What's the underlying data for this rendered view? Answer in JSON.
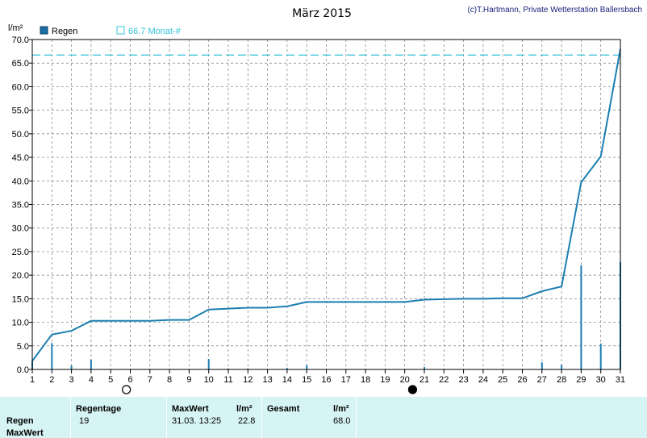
{
  "chart_data": {
    "type": "line",
    "title": "März 2015",
    "copyright": "(c)T.Hartmann, Private Wetterstation Ballersbach",
    "ylabel": "l/m²",
    "ylim": [
      0,
      70
    ],
    "yticks": [
      "0.0",
      "5.0",
      "10.0",
      "15.0",
      "20.0",
      "25.0",
      "30.0",
      "35.0",
      "40.0",
      "45.0",
      "50.0",
      "55.0",
      "60.0",
      "65.0",
      "70.0"
    ],
    "xlim": [
      1,
      31
    ],
    "xticks": [
      "1",
      "2",
      "3",
      "4",
      "5",
      "6",
      "7",
      "8",
      "9",
      "10",
      "11",
      "12",
      "13",
      "14",
      "15",
      "16",
      "17",
      "18",
      "19",
      "20",
      "21",
      "22",
      "23",
      "24",
      "25",
      "26",
      "27",
      "28",
      "29",
      "30",
      "31"
    ],
    "grid": true,
    "legend": {
      "position": "top-left",
      "bar_label": "Regen",
      "ref_label": "66.7 Monat-#"
    },
    "reference_value": 66.7,
    "series": [
      {
        "name": "Regen",
        "kind": "cumulative-line",
        "x": [
          1,
          2,
          3,
          4,
          5,
          6,
          7,
          8,
          9,
          10,
          11,
          12,
          13,
          14,
          15,
          16,
          17,
          18,
          19,
          20,
          21,
          22,
          23,
          24,
          25,
          26,
          27,
          28,
          29,
          30,
          31
        ],
        "values": [
          1.8,
          7.4,
          8.2,
          10.3,
          10.3,
          10.3,
          10.3,
          10.5,
          10.5,
          12.7,
          12.9,
          13.1,
          13.1,
          13.4,
          14.3,
          14.3,
          14.3,
          14.3,
          14.3,
          14.3,
          14.8,
          14.9,
          15.0,
          15.0,
          15.1,
          15.1,
          16.6,
          17.6,
          39.7,
          45.2,
          68.0
        ]
      },
      {
        "name": "Regen",
        "kind": "daily-bars",
        "x": [
          1,
          2,
          3,
          4,
          10,
          11,
          12,
          14,
          15,
          21,
          22,
          27,
          28,
          29,
          30,
          31
        ],
        "values": [
          1.8,
          5.6,
          0.8,
          2.1,
          2.2,
          0.2,
          0.2,
          0.3,
          0.9,
          0.5,
          0.1,
          1.5,
          1.0,
          22.1,
          5.5,
          22.8
        ]
      }
    ],
    "moon_phases": [
      {
        "day": 5.8,
        "phase": "full-moon"
      },
      {
        "day": 20.4,
        "phase": "new-moon"
      }
    ],
    "colors": {
      "line": "#1b7fb0",
      "reference": "#35c4d8",
      "legend_box": "#1b6fa5",
      "grid": "#7a7a7a"
    }
  },
  "stats": {
    "row_labels": [
      "Regen",
      "MaxWert"
    ],
    "regentage_header": "Regentage",
    "regentage_value": "19",
    "maxwert_header": "MaxWert",
    "maxwert_unit": "l/m²",
    "maxwert_time": "31.03.  13:25",
    "maxwert_value": "22.8",
    "gesamt_header": "Gesamt",
    "gesamt_unit": "l/m²",
    "gesamt_value": "68.0"
  }
}
